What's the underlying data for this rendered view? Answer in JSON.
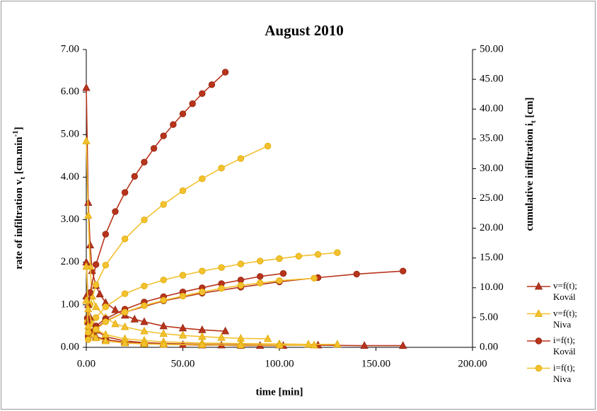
{
  "chart_data": {
    "type": "line",
    "title": "August 2010",
    "x_label": "time [min]",
    "y_label": {
      "text": "rate of infiltration  v",
      "sub": "t",
      "unit": " [cm.min",
      "sup": "-1",
      "end": "]"
    },
    "y2_label": {
      "text": "cumulative infiltration  i",
      "sub": "t",
      "end": " [cm]"
    },
    "xlim": [
      0,
      200
    ],
    "xticks": [
      {
        "value": 0,
        "label": "0.00"
      },
      {
        "value": 50,
        "label": "50.00"
      },
      {
        "value": 100,
        "label": "100.00"
      },
      {
        "value": 150,
        "label": "150.00"
      },
      {
        "value": 200,
        "label": "200.00"
      }
    ],
    "ylim": [
      0,
      7
    ],
    "yticks": [
      {
        "value": 0,
        "label": "0.00"
      },
      {
        "value": 1,
        "label": "1.00"
      },
      {
        "value": 2,
        "label": "2.00"
      },
      {
        "value": 3,
        "label": "3.00"
      },
      {
        "value": 4,
        "label": "4.00"
      },
      {
        "value": 5,
        "label": "5.00"
      },
      {
        "value": 6,
        "label": "6.00"
      },
      {
        "value": 7,
        "label": "7.00"
      }
    ],
    "y2lim": [
      0,
      50
    ],
    "y2ticks": [
      {
        "value": 0,
        "label": "0.00"
      },
      {
        "value": 5,
        "label": "5.00"
      },
      {
        "value": 10,
        "label": "10.00"
      },
      {
        "value": 15,
        "label": "15.00"
      },
      {
        "value": 20,
        "label": "20.00"
      },
      {
        "value": 25,
        "label": "25.00"
      },
      {
        "value": 30,
        "label": "30.00"
      },
      {
        "value": 35,
        "label": "35.00"
      },
      {
        "value": 40,
        "label": "40.00"
      },
      {
        "value": 45,
        "label": "45.00"
      },
      {
        "value": 50,
        "label": "50.00"
      }
    ],
    "grid": false,
    "legend": "right",
    "series": [
      {
        "name": "v=f(t); Kovál",
        "color": "#b8341b",
        "marker": "triangle",
        "axis": "y",
        "x": [
          0,
          1,
          2,
          3,
          5,
          7,
          10,
          15,
          20,
          25,
          30,
          40,
          50,
          60,
          72
        ],
        "values": [
          6.1,
          3.4,
          2.4,
          1.8,
          1.45,
          1.25,
          1.05,
          0.88,
          0.75,
          0.66,
          0.6,
          0.5,
          0.45,
          0.41,
          0.38
        ]
      },
      {
        "name": "v=f(t); Niva",
        "color": "#f2c12e",
        "marker": "triangle",
        "axis": "y",
        "x": [
          0,
          1,
          2,
          3,
          5,
          10,
          15,
          20,
          30,
          40,
          50,
          60,
          70,
          80,
          94
        ],
        "values": [
          4.85,
          3.1,
          1.9,
          1.2,
          0.95,
          0.7,
          0.55,
          0.48,
          0.38,
          0.32,
          0.28,
          0.25,
          0.23,
          0.21,
          0.2
        ]
      },
      {
        "name": "i=f(t); Kovál",
        "color": "#b8341b",
        "marker": "circle",
        "axis": "y2",
        "x": [
          0.5,
          2,
          5,
          10,
          15,
          20,
          25,
          30,
          35,
          40,
          45,
          50,
          55,
          60,
          65,
          72
        ],
        "values": [
          4.9,
          9.2,
          13.9,
          19,
          22.8,
          26,
          28.7,
          31.1,
          33.4,
          35.5,
          37.4,
          39.2,
          40.9,
          42.6,
          44.1,
          46.2
        ]
      },
      {
        "name": "i=f(t); Niva",
        "color": "#f2c12e",
        "marker": "circle",
        "axis": "y2",
        "x": [
          0.5,
          2,
          5,
          10,
          20,
          30,
          40,
          50,
          60,
          70,
          80,
          94
        ],
        "values": [
          4.2,
          7.2,
          10.5,
          13.8,
          18.2,
          21.4,
          24,
          26.3,
          28.3,
          30.1,
          31.7,
          33.8
        ]
      },
      {
        "color": "#b8341b",
        "marker": "triangle",
        "axis": "y",
        "x": [
          0,
          1,
          2,
          5,
          10,
          20,
          30,
          40,
          60,
          80,
          100,
          120,
          144,
          164
        ],
        "values": [
          2,
          1,
          0.7,
          0.4,
          0.25,
          0.15,
          0.11,
          0.09,
          0.07,
          0.06,
          0.05,
          0.05,
          0.04,
          0.04
        ]
      },
      {
        "color": "#b8341b",
        "marker": "triangle",
        "axis": "y",
        "x": [
          0,
          1,
          3,
          5,
          10,
          20,
          30,
          40,
          50,
          60,
          70,
          80,
          90,
          102
        ],
        "values": [
          1.2,
          0.6,
          0.35,
          0.25,
          0.18,
          0.12,
          0.09,
          0.07,
          0.06,
          0.05,
          0.05,
          0.04,
          0.04,
          0.04
        ]
      },
      {
        "color": "#f2c12e",
        "marker": "triangle",
        "axis": "y",
        "x": [
          0,
          1,
          3,
          5,
          10,
          20,
          30,
          40,
          60,
          80,
          100,
          115,
          130
        ],
        "values": [
          1.9,
          0.9,
          0.55,
          0.42,
          0.3,
          0.2,
          0.16,
          0.13,
          0.1,
          0.09,
          0.08,
          0.07,
          0.07
        ]
      },
      {
        "color": "#f2c12e",
        "marker": "triangle",
        "axis": "y",
        "x": [
          0,
          1,
          3,
          5,
          10,
          20,
          30,
          40,
          60,
          80,
          100,
          118
        ],
        "values": [
          1.1,
          0.5,
          0.3,
          0.22,
          0.15,
          0.1,
          0.08,
          0.07,
          0.06,
          0.05,
          0.05,
          0.05
        ]
      },
      {
        "color": "#b8341b",
        "marker": "circle",
        "axis": "y2",
        "x": [
          1,
          5,
          10,
          20,
          30,
          40,
          50,
          60,
          70,
          80,
          90,
          102
        ],
        "values": [
          1.9,
          3.6,
          4.8,
          6.4,
          7.6,
          8.5,
          9.3,
          10,
          10.7,
          11.3,
          11.9,
          12.4
        ]
      },
      {
        "color": "#b8341b",
        "marker": "circle",
        "axis": "y2",
        "x": [
          1,
          5,
          10,
          20,
          40,
          60,
          80,
          100,
          120,
          140,
          164
        ],
        "values": [
          1.5,
          3.2,
          4.4,
          5.9,
          7.8,
          9.1,
          10.1,
          11,
          11.7,
          12.3,
          12.8
        ]
      },
      {
        "color": "#f2c12e",
        "marker": "circle",
        "axis": "y2",
        "x": [
          1,
          5,
          10,
          20,
          30,
          40,
          50,
          60,
          70,
          80,
          90,
          100,
          110,
          120,
          130
        ],
        "values": [
          2.5,
          5,
          6.8,
          9,
          10.3,
          11.3,
          12.1,
          12.8,
          13.4,
          14,
          14.5,
          14.9,
          15.3,
          15.6,
          15.9
        ]
      },
      {
        "color": "#f2c12e",
        "marker": "circle",
        "axis": "y2",
        "x": [
          1,
          5,
          10,
          20,
          30,
          40,
          50,
          60,
          70,
          80,
          90,
          100,
          118
        ],
        "values": [
          1.3,
          3,
          4.3,
          5.9,
          7,
          7.9,
          8.6,
          9.3,
          9.9,
          10.4,
          10.8,
          11.2,
          11.6
        ]
      }
    ]
  }
}
